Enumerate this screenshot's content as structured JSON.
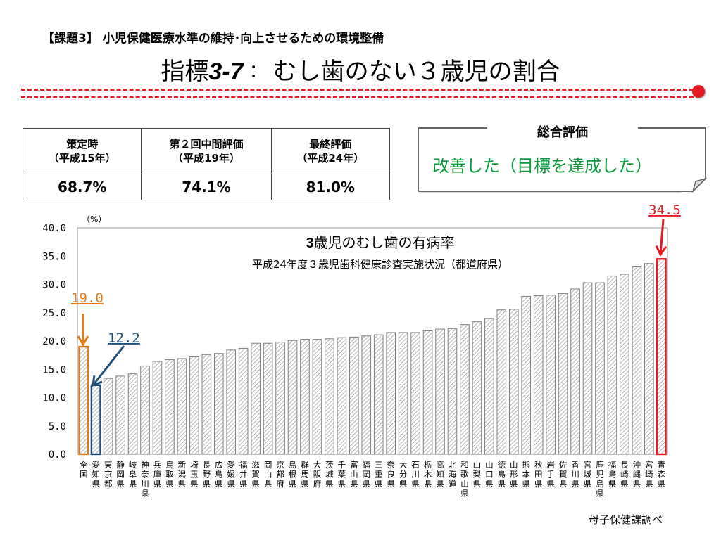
{
  "subject": "【課題3】 小児保健医療水準の維持･向上させるための環境整備",
  "title": {
    "prefix": "指標",
    "code": "3-7",
    "sep": "：",
    "text": "むし歯のない３歳児の割合"
  },
  "summary_table": {
    "headers": [
      {
        "line1": "策定時",
        "line2": "（平成15年）"
      },
      {
        "line1": "第２回中間評価",
        "line2": "（平成19年）"
      },
      {
        "line1": "最終評価",
        "line2": "（平成24年）"
      }
    ],
    "values": [
      "68.7%",
      "74.1%",
      "81.0%"
    ]
  },
  "assessment": {
    "label": "総合評価",
    "result": "改善した（目標を達成した）",
    "result_color": "#0a9a3a"
  },
  "source": "母子保健課調べ",
  "colors": {
    "accent": "#e31c23",
    "national": "#e07b1a",
    "aichi": "#1f4e79",
    "bar": "#7f7f7f"
  },
  "chart_data": {
    "type": "bar",
    "title_bold": "3",
    "title_text": "歳児のむし歯の有病率",
    "subtitle": "平成24年度３歳児歯科健康診査実施状況（都道府県）",
    "ylabel": "（%）",
    "ylim": [
      0,
      40
    ],
    "yticks": [
      "0.0",
      "5.0",
      "10.0",
      "15.0",
      "20.0",
      "25.0",
      "30.0",
      "35.0",
      "40.0"
    ],
    "grid": false,
    "categories": [
      "全国",
      "愛知県",
      "東京都",
      "静岡県",
      "岐阜県",
      "神奈川県",
      "兵庫県",
      "鳥取県",
      "新潟県",
      "埼玉県",
      "長野県",
      "広島県",
      "愛媛県",
      "福井県",
      "滋賀県",
      "岡山県",
      "京都府",
      "島根県",
      "群馬県",
      "大阪府",
      "茨城県",
      "千葉県",
      "富山県",
      "福岡県",
      "三重県",
      "奈良県",
      "大分県",
      "石川県",
      "栃木県",
      "高知県",
      "北海道",
      "和歌山県",
      "山梨県",
      "山口県",
      "徳島県",
      "山形県",
      "熊本県",
      "秋田県",
      "岩手県",
      "佐賀県",
      "香川県",
      "宮城県",
      "鹿児島県",
      "福島県",
      "長崎県",
      "沖縄県",
      "宮崎県",
      "青森県"
    ],
    "values": [
      19.0,
      12.2,
      13.4,
      13.8,
      14.2,
      15.6,
      16.4,
      16.7,
      16.9,
      17.2,
      17.6,
      17.8,
      18.4,
      18.7,
      19.6,
      19.6,
      19.8,
      20.1,
      20.3,
      20.3,
      20.4,
      20.6,
      20.7,
      20.9,
      21.1,
      21.5,
      21.5,
      21.5,
      21.8,
      22.1,
      22.2,
      22.9,
      23.4,
      24.0,
      25.5,
      25.6,
      27.9,
      28.0,
      28.1,
      28.4,
      29.2,
      30.3,
      30.3,
      31.5,
      31.8,
      33.1,
      33.7,
      34.5
    ],
    "callouts": [
      {
        "index": 0,
        "label": "19.0"
      },
      {
        "index": 1,
        "label": "12.2"
      },
      {
        "index": 47,
        "label": "34.5"
      }
    ]
  }
}
